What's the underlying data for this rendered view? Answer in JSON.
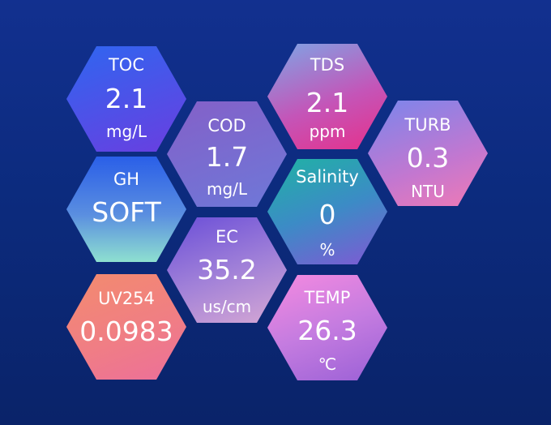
{
  "tiles": {
    "toc": {
      "label": "TOC",
      "value": "2.1",
      "unit": "mg/L",
      "color_start": "#2f66f0",
      "color_end": "#6a3ee0"
    },
    "tds": {
      "label": "TDS",
      "value": "2.1",
      "unit": "ppm",
      "color_start": "#7da6e6",
      "color_end": "#e6308a"
    },
    "cod": {
      "label": "COD",
      "value": "1.7",
      "unit": "mg/L",
      "color_start": "#8460c8",
      "color_end": "#6e78d8"
    },
    "turb": {
      "label": "TURB",
      "value": "0.3",
      "unit": "NTU",
      "color_start": "#7a86ec",
      "color_end": "#f07ab4"
    },
    "gh": {
      "label": "GH",
      "value": "SOFT",
      "color_start": "#2a5fe8",
      "color_end": "#8ee0d0"
    },
    "salinity": {
      "label": "Salinity",
      "value": "0",
      "unit": "%",
      "color_start": "#1fb3a4",
      "color_end": "#8158d4"
    },
    "ec": {
      "label": "EC",
      "value": "35.2",
      "unit": "us/cm",
      "color_start": "#6a4ed8",
      "color_end": "#d6a8d4"
    },
    "uv254": {
      "label": "UV254",
      "value": "0.0983",
      "color_start": "#f38b6e",
      "color_end": "#ec6f9a"
    },
    "temp": {
      "label": "TEMP",
      "value": "26.3",
      "unit": "℃",
      "color_start": "#f58ae0",
      "color_end": "#9a60d6"
    }
  },
  "background_color": "#0c2b7e"
}
